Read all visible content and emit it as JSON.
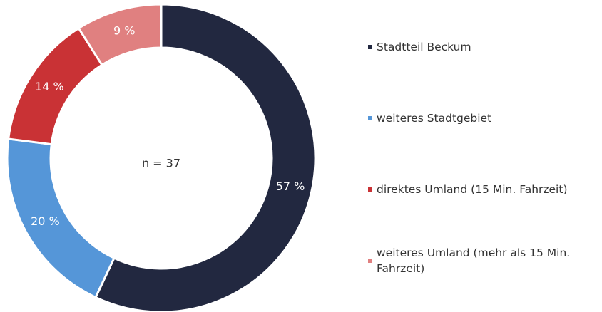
{
  "chart_data": {
    "type": "donut",
    "categories": [
      "Stadtteil Beckum",
      "weiteres Stadtgebiet",
      "direktes Umland (15 Min. Fahrzeit)",
      "weiteres Umland (mehr als 15 Min. Fahrzeit)"
    ],
    "values": [
      57,
      20,
      14,
      9
    ],
    "value_labels": [
      "57 %",
      "20 %",
      "14 %",
      "9 %"
    ],
    "colors": [
      "#222840",
      "#5596d8",
      "#c93235",
      "#e08080"
    ],
    "annotation": "n = 37"
  }
}
